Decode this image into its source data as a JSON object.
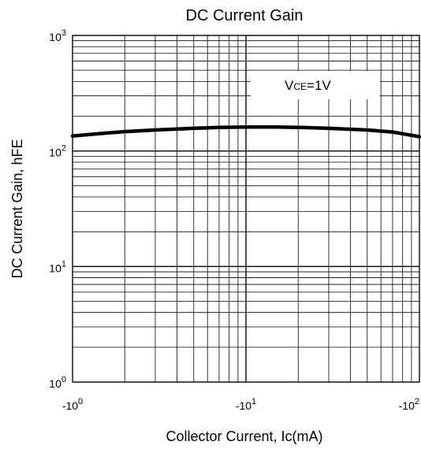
{
  "chart_data": {
    "type": "line",
    "title": "DC Current Gain",
    "xlabel": "Collector Current, Ic(mA)",
    "ylabel": "DC Current Gain, hFE",
    "x_scale": "log",
    "y_scale": "log",
    "xlim": [
      1,
      100
    ],
    "ylim": [
      1,
      1000
    ],
    "grid": true,
    "x_ticks": [
      {
        "value": 1,
        "base": "-10",
        "exp": "0"
      },
      {
        "value": 10,
        "base": "-10",
        "exp": "1"
      },
      {
        "value": 100,
        "base": "-10",
        "exp": "2"
      }
    ],
    "y_ticks": [
      {
        "value": 1,
        "base": "10",
        "exp": "0"
      },
      {
        "value": 10,
        "base": "10",
        "exp": "1"
      },
      {
        "value": 100,
        "base": "10",
        "exp": "2"
      },
      {
        "value": 1000,
        "base": "10",
        "exp": "3"
      }
    ],
    "annotation": {
      "main": "V",
      "sub": "CE",
      "rest": "=1V"
    },
    "series": [
      {
        "x": [
          1,
          1.5,
          2,
          3,
          5,
          7,
          10,
          15,
          20,
          30,
          50,
          70,
          100
        ],
        "y": [
          135,
          142,
          147,
          152,
          157,
          160,
          161,
          161,
          160,
          157,
          152,
          146,
          133
        ]
      }
    ]
  }
}
